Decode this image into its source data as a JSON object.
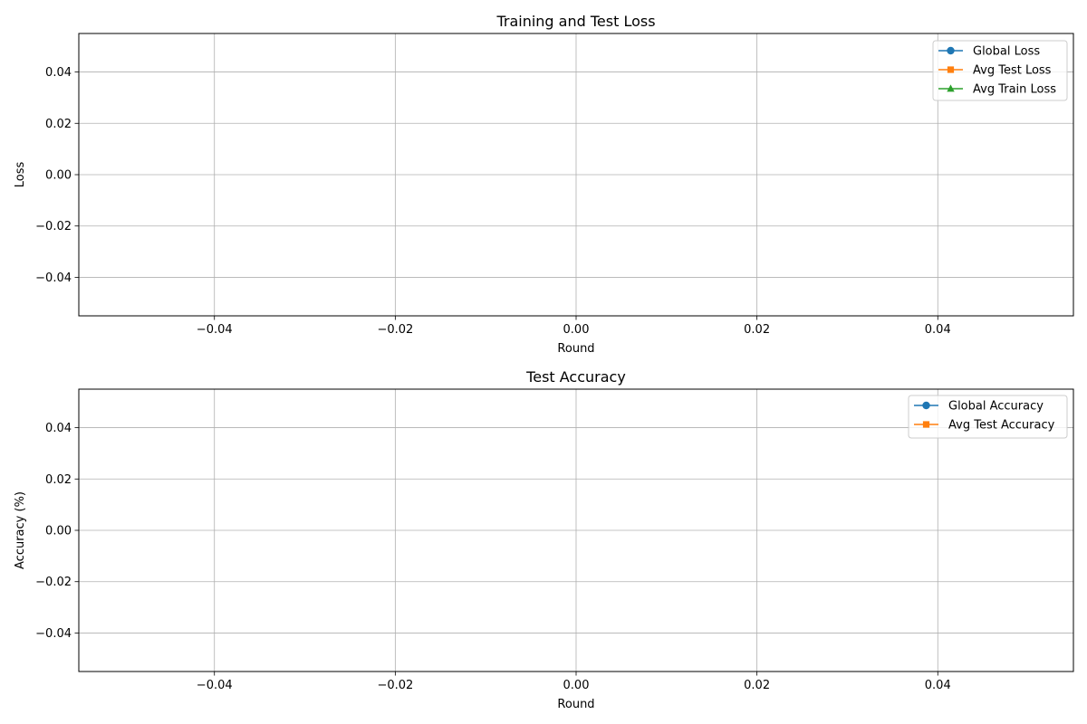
{
  "figure": {
    "background": "#ffffff",
    "grid_color": "#b0b0b0",
    "axis_color": "#000000"
  },
  "chart_data": [
    {
      "type": "line",
      "title": "Training and Test Loss",
      "xlabel": "Round",
      "ylabel": "Loss",
      "grid": true,
      "legend_position": "top-right",
      "xlim": [
        -0.055,
        0.055
      ],
      "ylim": [
        -0.055,
        0.055
      ],
      "xticks": [
        -0.04,
        -0.02,
        0.0,
        0.02,
        0.04
      ],
      "yticks": [
        -0.04,
        -0.02,
        0.0,
        0.02,
        0.04
      ],
      "xtick_labels": [
        "−0.04",
        "−0.02",
        "0.00",
        "0.02",
        "0.04"
      ],
      "ytick_labels": [
        "−0.04",
        "−0.02",
        "0.00",
        "0.02",
        "0.04"
      ],
      "series": [
        {
          "name": "Global Loss",
          "color": "#1f77b4",
          "marker": "circle",
          "x": [],
          "y": []
        },
        {
          "name": "Avg Test Loss",
          "color": "#ff7f0e",
          "marker": "square",
          "x": [],
          "y": []
        },
        {
          "name": "Avg Train Loss",
          "color": "#2ca02c",
          "marker": "triangle",
          "x": [],
          "y": []
        }
      ]
    },
    {
      "type": "line",
      "title": "Test Accuracy",
      "xlabel": "Round",
      "ylabel": "Accuracy (%)",
      "grid": true,
      "legend_position": "top-right",
      "xlim": [
        -0.055,
        0.055
      ],
      "ylim": [
        -0.055,
        0.055
      ],
      "xticks": [
        -0.04,
        -0.02,
        0.0,
        0.02,
        0.04
      ],
      "yticks": [
        -0.04,
        -0.02,
        0.0,
        0.02,
        0.04
      ],
      "xtick_labels": [
        "−0.04",
        "−0.02",
        "0.00",
        "0.02",
        "0.04"
      ],
      "ytick_labels": [
        "−0.04",
        "−0.02",
        "0.00",
        "0.02",
        "0.04"
      ],
      "series": [
        {
          "name": "Global Accuracy",
          "color": "#1f77b4",
          "marker": "circle",
          "x": [],
          "y": []
        },
        {
          "name": "Avg Test Accuracy",
          "color": "#ff7f0e",
          "marker": "square",
          "x": [],
          "y": []
        }
      ]
    }
  ]
}
